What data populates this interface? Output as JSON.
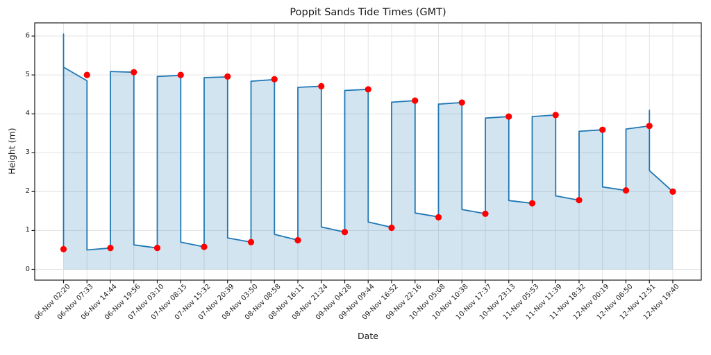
{
  "figure": {
    "title": "Poppit Sands Tide Times (GMT)",
    "xlabel": "Date",
    "ylabel": "Height (m)"
  },
  "chart_data": {
    "type": "line",
    "title": "Poppit Sands Tide Times (GMT)",
    "xlabel": "Date",
    "ylabel": "Height (m)",
    "grid": true,
    "legend_position": "none",
    "x_axis_type": "category",
    "y_ticks": [
      0,
      1,
      2,
      3,
      4,
      5,
      6
    ],
    "ylim": [
      -0.25,
      6.36
    ],
    "events": [
      {
        "label": "06-Nov 02:20",
        "height": 0.52,
        "type": "low"
      },
      {
        "label": "06-Nov 07:33",
        "height": 5.0,
        "type": "high"
      },
      {
        "label": "06-Nov 14:44",
        "height": 0.55,
        "type": "low"
      },
      {
        "label": "06-Nov 19:56",
        "height": 5.07,
        "type": "high"
      },
      {
        "label": "07-Nov 03:10",
        "height": 0.55,
        "type": "low"
      },
      {
        "label": "07-Nov 08:15",
        "height": 5.0,
        "type": "high"
      },
      {
        "label": "07-Nov 15:32",
        "height": 0.58,
        "type": "low"
      },
      {
        "label": "07-Nov 20:39",
        "height": 4.96,
        "type": "high"
      },
      {
        "label": "08-Nov 03:50",
        "height": 0.7,
        "type": "low"
      },
      {
        "label": "08-Nov 08:58",
        "height": 4.89,
        "type": "high"
      },
      {
        "label": "08-Nov 16:11",
        "height": 0.75,
        "type": "low"
      },
      {
        "label": "08-Nov 21:24",
        "height": 4.71,
        "type": "high"
      },
      {
        "label": "09-Nov 04:28",
        "height": 0.96,
        "type": "low"
      },
      {
        "label": "09-Nov 09:44",
        "height": 4.63,
        "type": "high"
      },
      {
        "label": "09-Nov 16:52",
        "height": 1.07,
        "type": "low"
      },
      {
        "label": "09-Nov 22:16",
        "height": 4.34,
        "type": "high"
      },
      {
        "label": "10-Nov 05:08",
        "height": 1.34,
        "type": "low"
      },
      {
        "label": "10-Nov 10:38",
        "height": 4.29,
        "type": "high"
      },
      {
        "label": "10-Nov 17:37",
        "height": 1.43,
        "type": "low"
      },
      {
        "label": "10-Nov 23:13",
        "height": 3.93,
        "type": "high"
      },
      {
        "label": "11-Nov 05:53",
        "height": 1.7,
        "type": "low"
      },
      {
        "label": "11-Nov 11:39",
        "height": 3.97,
        "type": "high"
      },
      {
        "label": "11-Nov 18:32",
        "height": 1.78,
        "type": "low"
      },
      {
        "label": "12-Nov 00:19",
        "height": 3.59,
        "type": "high"
      },
      {
        "label": "12-Nov 06:50",
        "height": 2.03,
        "type": "low"
      },
      {
        "label": "12-Nov 12:51",
        "height": 3.69,
        "type": "high"
      },
      {
        "label": "12-Nov 19:40",
        "height": 2.0,
        "type": "low"
      }
    ],
    "line": {
      "name": "tide-height-curve",
      "color": "#1f77b4",
      "width": 1.8,
      "fill_color": "#1f77b4",
      "fill_opacity": 0.2,
      "fill_baseline": 0,
      "path": [
        [
          0,
          6.05
        ],
        [
          0,
          0.52
        ],
        [
          0,
          5.2
        ],
        [
          1,
          4.85
        ],
        [
          1,
          0.5
        ],
        [
          2,
          0.55
        ],
        [
          2,
          5.09
        ],
        [
          3,
          5.07
        ],
        [
          3,
          0.63
        ],
        [
          4,
          0.55
        ],
        [
          4,
          4.96
        ],
        [
          5,
          4.99
        ],
        [
          5,
          0.7
        ],
        [
          6,
          0.58
        ],
        [
          6,
          4.93
        ],
        [
          7,
          4.95
        ],
        [
          7,
          0.81
        ],
        [
          8,
          0.7
        ],
        [
          8,
          4.84
        ],
        [
          9,
          4.88
        ],
        [
          9,
          0.9
        ],
        [
          10,
          0.75
        ],
        [
          10,
          4.68
        ],
        [
          11,
          4.71
        ],
        [
          11,
          1.09
        ],
        [
          12,
          0.96
        ],
        [
          12,
          4.6
        ],
        [
          13,
          4.63
        ],
        [
          13,
          1.22
        ],
        [
          14,
          1.08
        ],
        [
          14,
          4.3
        ],
        [
          15,
          4.34
        ],
        [
          15,
          1.45
        ],
        [
          16,
          1.35
        ],
        [
          16,
          4.25
        ],
        [
          17,
          4.29
        ],
        [
          17,
          1.54
        ],
        [
          18,
          1.43
        ],
        [
          18,
          3.89
        ],
        [
          19,
          3.93
        ],
        [
          19,
          1.77
        ],
        [
          20,
          1.7
        ],
        [
          20,
          3.93
        ],
        [
          21,
          3.97
        ],
        [
          21,
          1.89
        ],
        [
          22,
          1.78
        ],
        [
          22,
          3.55
        ],
        [
          23,
          3.59
        ],
        [
          23,
          2.12
        ],
        [
          24,
          2.03
        ],
        [
          24,
          3.61
        ],
        [
          25,
          3.69
        ],
        [
          25,
          4.09
        ],
        [
          25,
          2.54
        ],
        [
          26,
          2.0
        ]
      ]
    },
    "markers": {
      "name": "tide-extreme-markers",
      "color": "#ff0000",
      "radius": 4.6
    },
    "colors": {
      "grid": "#e3e3e3",
      "spine": "#1a1a1a",
      "text": "#1a1a1a",
      "background": "#ffffff"
    }
  }
}
